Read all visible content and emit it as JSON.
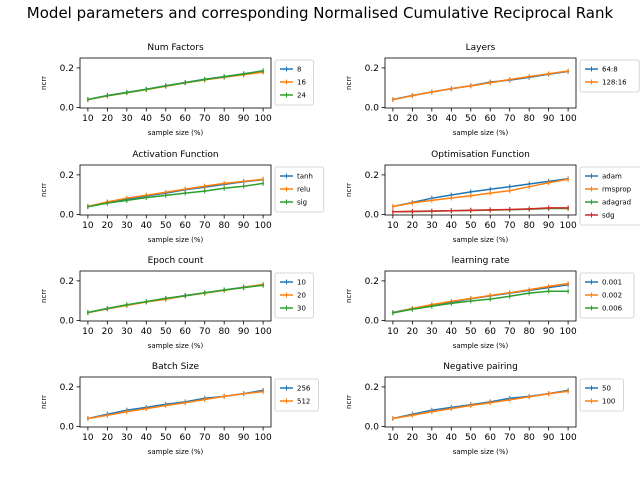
{
  "figure_title": "Model parameters and corresponding Normalised Cumulative Reciprocal Rank",
  "colors": {
    "blue": "#1f77b4",
    "orange": "#ff7f0e",
    "green": "#2ca02c",
    "red": "#d62728"
  },
  "chart_data": [
    {
      "type": "line",
      "title": "Num Factors",
      "xlabel": "sample size (%)",
      "ylabel": "ncrr",
      "x": [
        10,
        20,
        30,
        40,
        50,
        60,
        70,
        80,
        90,
        100
      ],
      "xticks": [
        "10",
        "20",
        "30",
        "40",
        "50",
        "60",
        "70",
        "80",
        "90",
        "100"
      ],
      "yticks": [
        0.0,
        0.2
      ],
      "ytick_labels": [
        "0.0",
        "0.2"
      ],
      "ylim": [
        0,
        0.25
      ],
      "legend_position": "right",
      "series": [
        {
          "name": "8",
          "color": "#1f77b4",
          "values": [
            0.04,
            0.06,
            0.076,
            0.092,
            0.11,
            0.126,
            0.142,
            0.156,
            0.17,
            0.184
          ]
        },
        {
          "name": "16",
          "color": "#ff7f0e",
          "values": [
            0.039,
            0.058,
            0.074,
            0.09,
            0.107,
            0.124,
            0.139,
            0.153,
            0.165,
            0.178
          ]
        },
        {
          "name": "24",
          "color": "#2ca02c",
          "values": [
            0.04,
            0.059,
            0.075,
            0.091,
            0.109,
            0.125,
            0.141,
            0.155,
            0.169,
            0.185
          ]
        }
      ]
    },
    {
      "type": "line",
      "title": "Layers",
      "xlabel": "sample size (%)",
      "ylabel": "ncrr",
      "x": [
        10,
        20,
        30,
        40,
        50,
        60,
        70,
        80,
        90,
        100
      ],
      "xticks": [
        "10",
        "20",
        "30",
        "40",
        "50",
        "60",
        "70",
        "80",
        "90",
        "100"
      ],
      "yticks": [
        0.0,
        0.2
      ],
      "ytick_labels": [
        "0.0",
        "0.2"
      ],
      "ylim": [
        0,
        0.25
      ],
      "legend_position": "right",
      "series": [
        {
          "name": "64:8",
          "color": "#1f77b4",
          "values": [
            0.04,
            0.06,
            0.078,
            0.094,
            0.11,
            0.128,
            0.138,
            0.152,
            0.168,
            0.182
          ]
        },
        {
          "name": "128:16",
          "color": "#ff7f0e",
          "values": [
            0.039,
            0.059,
            0.078,
            0.095,
            0.109,
            0.125,
            0.141,
            0.156,
            0.17,
            0.184
          ]
        }
      ]
    },
    {
      "type": "line",
      "title": "Activation Function",
      "xlabel": "sample size (%)",
      "ylabel": "ncrr",
      "x": [
        10,
        20,
        30,
        40,
        50,
        60,
        70,
        80,
        90,
        100
      ],
      "xticks": [
        "10",
        "20",
        "30",
        "40",
        "50",
        "60",
        "70",
        "80",
        "90",
        "100"
      ],
      "yticks": [
        0.0,
        0.2
      ],
      "ytick_labels": [
        "0.0",
        "0.2"
      ],
      "ylim": [
        0,
        0.25
      ],
      "legend_position": "right",
      "series": [
        {
          "name": "tanh",
          "color": "#1f77b4",
          "values": [
            0.04,
            0.06,
            0.076,
            0.093,
            0.108,
            0.125,
            0.138,
            0.152,
            0.165,
            0.176
          ]
        },
        {
          "name": "relu",
          "color": "#ff7f0e",
          "values": [
            0.04,
            0.064,
            0.082,
            0.097,
            0.112,
            0.128,
            0.143,
            0.157,
            0.167,
            0.178
          ]
        },
        {
          "name": "sig",
          "color": "#2ca02c",
          "values": [
            0.039,
            0.057,
            0.071,
            0.085,
            0.096,
            0.108,
            0.118,
            0.132,
            0.142,
            0.157
          ]
        }
      ]
    },
    {
      "type": "line",
      "title": "Optimisation Function",
      "xlabel": "sample size (%)",
      "ylabel": "ncrr",
      "x": [
        10,
        20,
        30,
        40,
        50,
        60,
        70,
        80,
        90,
        100
      ],
      "xticks": [
        "10",
        "20",
        "30",
        "40",
        "50",
        "60",
        "70",
        "80",
        "90",
        "100"
      ],
      "yticks": [
        0.0,
        0.2
      ],
      "ytick_labels": [
        "0.0",
        "0.2"
      ],
      "ylim": [
        0,
        0.25
      ],
      "legend_position": "right",
      "series": [
        {
          "name": "adam",
          "color": "#1f77b4",
          "values": [
            0.04,
            0.06,
            0.082,
            0.098,
            0.114,
            0.127,
            0.14,
            0.154,
            0.167,
            0.18
          ]
        },
        {
          "name": "rmsprop",
          "color": "#ff7f0e",
          "values": [
            0.04,
            0.058,
            0.071,
            0.083,
            0.094,
            0.108,
            0.12,
            0.14,
            0.16,
            0.178
          ]
        },
        {
          "name": "adagrad",
          "color": "#2ca02c",
          "values": [
            0.013,
            0.014,
            0.016,
            0.018,
            0.02,
            0.022,
            0.024,
            0.026,
            0.03,
            0.03
          ]
        },
        {
          "name": "sdg",
          "color": "#d62728",
          "values": [
            0.013,
            0.015,
            0.017,
            0.019,
            0.021,
            0.023,
            0.025,
            0.028,
            0.033,
            0.033
          ]
        }
      ]
    },
    {
      "type": "line",
      "title": "Epoch count",
      "xlabel": "sample size (%)",
      "ylabel": "ncrr",
      "x": [
        10,
        20,
        30,
        40,
        50,
        60,
        70,
        80,
        90,
        100
      ],
      "xticks": [
        "10",
        "20",
        "30",
        "40",
        "50",
        "60",
        "70",
        "80",
        "90",
        "100"
      ],
      "yticks": [
        0.0,
        0.2
      ],
      "ytick_labels": [
        "0.0",
        "0.2"
      ],
      "ylim": [
        0,
        0.25
      ],
      "legend_position": "right",
      "series": [
        {
          "name": "10",
          "color": "#1f77b4",
          "values": [
            0.04,
            0.06,
            0.078,
            0.094,
            0.11,
            0.126,
            0.139,
            0.154,
            0.168,
            0.18
          ]
        },
        {
          "name": "20",
          "color": "#ff7f0e",
          "values": [
            0.039,
            0.058,
            0.076,
            0.093,
            0.107,
            0.124,
            0.138,
            0.152,
            0.167,
            0.182
          ]
        },
        {
          "name": "30",
          "color": "#2ca02c",
          "values": [
            0.04,
            0.06,
            0.079,
            0.095,
            0.112,
            0.124,
            0.14,
            0.154,
            0.166,
            0.178
          ]
        }
      ]
    },
    {
      "type": "line",
      "title": "learning rate",
      "xlabel": "sample size (%)",
      "ylabel": "ncrr",
      "x": [
        10,
        20,
        30,
        40,
        50,
        60,
        70,
        80,
        90,
        100
      ],
      "xticks": [
        "10",
        "20",
        "30",
        "40",
        "50",
        "60",
        "70",
        "80",
        "90",
        "100"
      ],
      "yticks": [
        0.0,
        0.2
      ],
      "ytick_labels": [
        "0.0",
        "0.2"
      ],
      "ylim": [
        0,
        0.25
      ],
      "legend_position": "right",
      "series": [
        {
          "name": "0.001",
          "color": "#1f77b4",
          "values": [
            0.04,
            0.06,
            0.076,
            0.092,
            0.11,
            0.124,
            0.138,
            0.152,
            0.166,
            0.18
          ]
        },
        {
          "name": "0.002",
          "color": "#ff7f0e",
          "values": [
            0.038,
            0.06,
            0.08,
            0.096,
            0.111,
            0.126,
            0.14,
            0.155,
            0.172,
            0.186
          ]
        },
        {
          "name": "0.006",
          "color": "#2ca02c",
          "values": [
            0.038,
            0.056,
            0.072,
            0.086,
            0.098,
            0.108,
            0.122,
            0.138,
            0.148,
            0.148
          ]
        }
      ]
    },
    {
      "type": "line",
      "title": "Batch Size",
      "xlabel": "sample size (%)",
      "ylabel": "ncrr",
      "x": [
        10,
        20,
        30,
        40,
        50,
        60,
        70,
        80,
        90,
        100
      ],
      "xticks": [
        "10",
        "20",
        "30",
        "40",
        "50",
        "60",
        "70",
        "80",
        "90",
        "100"
      ],
      "yticks": [
        0.0,
        0.2
      ],
      "ytick_labels": [
        "0.0",
        "0.2"
      ],
      "ylim": [
        0,
        0.25
      ],
      "legend_position": "right",
      "series": [
        {
          "name": "256",
          "color": "#1f77b4",
          "values": [
            0.04,
            0.062,
            0.082,
            0.096,
            0.112,
            0.124,
            0.142,
            0.152,
            0.166,
            0.182
          ]
        },
        {
          "name": "512",
          "color": "#ff7f0e",
          "values": [
            0.04,
            0.056,
            0.074,
            0.09,
            0.106,
            0.12,
            0.136,
            0.152,
            0.165,
            0.176
          ]
        }
      ]
    },
    {
      "type": "line",
      "title": "Negative pairing",
      "xlabel": "sample size (%)",
      "ylabel": "ncrr",
      "x": [
        10,
        20,
        30,
        40,
        50,
        60,
        70,
        80,
        90,
        100
      ],
      "xticks": [
        "10",
        "20",
        "30",
        "40",
        "50",
        "60",
        "70",
        "80",
        "90",
        "100"
      ],
      "yticks": [
        0.0,
        0.2
      ],
      "ytick_labels": [
        "0.0",
        "0.2"
      ],
      "ylim": [
        0,
        0.25
      ],
      "legend_position": "right",
      "series": [
        {
          "name": "50",
          "color": "#1f77b4",
          "values": [
            0.04,
            0.062,
            0.082,
            0.096,
            0.11,
            0.124,
            0.142,
            0.152,
            0.166,
            0.182
          ]
        },
        {
          "name": "100",
          "color": "#ff7f0e",
          "values": [
            0.04,
            0.056,
            0.074,
            0.09,
            0.106,
            0.12,
            0.134,
            0.15,
            0.165,
            0.178
          ]
        }
      ]
    }
  ]
}
